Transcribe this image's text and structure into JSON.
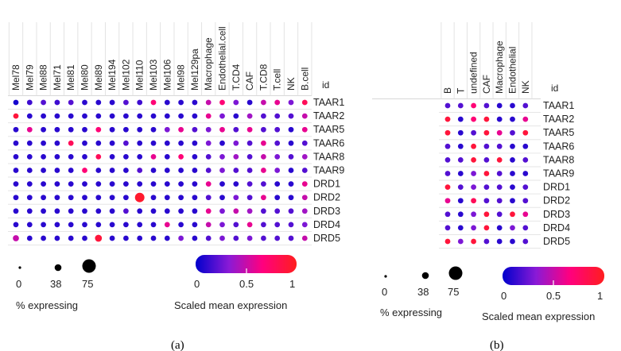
{
  "panels": [
    {
      "caption": "(a)",
      "chart_data": {
        "type": "dot-plot",
        "id_label": "id",
        "columns": [
          "Mel78",
          "Mel79",
          "Mel88",
          "Mel71",
          "Mel81",
          "Mel80",
          "Mel89",
          "Mel194",
          "Mel102",
          "Mel110",
          "Mel103",
          "Mel106",
          "Mel98",
          "Mel129pa",
          "Macrophage",
          "Endothelial.cell",
          "T.CD4",
          "CAF",
          "T.CD8",
          "T.cell",
          "NK",
          "B.cell"
        ],
        "rows": [
          "TAAR1",
          "TAAR2",
          "TAAR5",
          "TAAR6",
          "TAAR8",
          "TAAR9",
          "DRD1",
          "DRD2",
          "DRD3",
          "DRD4",
          "DRD5"
        ],
        "size_legend": {
          "title": "% expressing",
          "values": [
            0,
            38,
            75
          ],
          "labels": [
            "0",
            "38",
            "75"
          ]
        },
        "color_legend": {
          "title": "Scaled mean expression",
          "range": [
            0,
            1
          ],
          "ticks": [
            "0",
            "0.5",
            "1"
          ],
          "colors": [
            "#0000cc",
            "#8a1ad6",
            "#ff007f",
            "#ff1e1e"
          ]
        },
        "values": [
          [
            0.05,
            0.15,
            0.2,
            0.15,
            0.2,
            0.1,
            0.1,
            0.1,
            0.2,
            0.15,
            0.7,
            0.1,
            0.1,
            0.1,
            0.5,
            0.7,
            0.3,
            0.1,
            0.5,
            0.6,
            0.3,
            0.8
          ],
          [
            0.9,
            0.1,
            0.1,
            0.1,
            0.1,
            0.1,
            0.1,
            0.1,
            0.1,
            0.1,
            0.1,
            0.1,
            0.1,
            0.1,
            0.6,
            0.3,
            0.1,
            0.4,
            0.2,
            0.2,
            0.2,
            0.5
          ],
          [
            0.1,
            0.6,
            0.1,
            0.1,
            0.1,
            0.1,
            0.7,
            0.1,
            0.1,
            0.1,
            0.1,
            0.3,
            0.6,
            0.2,
            0.3,
            0.6,
            0.2,
            0.6,
            0.2,
            0.2,
            0.1,
            0.6
          ],
          [
            0.1,
            0.1,
            0.1,
            0.1,
            0.8,
            0.1,
            0.1,
            0.1,
            0.2,
            0.1,
            0.1,
            0.1,
            0.1,
            0.1,
            0.3,
            0.1,
            0.3,
            0.2,
            0.6,
            0.2,
            0.1,
            0.2
          ],
          [
            0.1,
            0.1,
            0.1,
            0.1,
            0.1,
            0.1,
            0.8,
            0.1,
            0.1,
            0.1,
            0.6,
            0.1,
            0.7,
            0.1,
            0.2,
            0.3,
            0.4,
            0.2,
            0.5,
            0.3,
            0.2,
            0.4
          ],
          [
            0.1,
            0.1,
            0.1,
            0.1,
            0.1,
            0.7,
            0.1,
            0.1,
            0.1,
            0.2,
            0.1,
            0.1,
            0.1,
            0.1,
            0.2,
            0.3,
            0.2,
            0.2,
            0.6,
            0.3,
            0.1,
            0.2
          ],
          [
            0.1,
            0.1,
            0.1,
            0.1,
            0.1,
            0.1,
            0.1,
            0.1,
            0.1,
            0.1,
            0.1,
            0.1,
            0.1,
            0.1,
            0.6,
            0.1,
            0.1,
            0.2,
            0.2,
            0.1,
            0.1,
            0.6
          ],
          [
            0.1,
            0.1,
            0.1,
            0.1,
            0.1,
            0.1,
            0.1,
            0.1,
            0.1,
            0.95,
            0.1,
            0.1,
            0.1,
            0.1,
            0.2,
            0.1,
            0.3,
            0.2,
            0.6,
            0.1,
            0.1,
            0.5
          ],
          [
            0.1,
            0.1,
            0.1,
            0.1,
            0.1,
            0.1,
            0.1,
            0.1,
            0.2,
            0.1,
            0.1,
            0.1,
            0.1,
            0.1,
            0.6,
            0.3,
            0.5,
            0.4,
            0.2,
            0.2,
            0.2,
            0.4
          ],
          [
            0.1,
            0.1,
            0.1,
            0.1,
            0.1,
            0.1,
            0.1,
            0.1,
            0.1,
            0.1,
            0.1,
            0.6,
            0.1,
            0.1,
            0.5,
            0.3,
            0.2,
            0.6,
            0.2,
            0.2,
            0.2,
            0.3
          ],
          [
            0.5,
            0.1,
            0.1,
            0.1,
            0.1,
            0.1,
            0.9,
            0.1,
            0.1,
            0.1,
            0.1,
            0.1,
            0.3,
            0.1,
            0.2,
            0.3,
            0.2,
            0.3,
            0.2,
            0.2,
            0.2,
            0.5
          ]
        ],
        "pct": [
          [
            5,
            5,
            5,
            5,
            5,
            5,
            5,
            5,
            5,
            5,
            5,
            5,
            5,
            5,
            5,
            5,
            5,
            5,
            5,
            5,
            5,
            5
          ],
          [
            5,
            5,
            5,
            5,
            5,
            5,
            5,
            5,
            5,
            5,
            5,
            5,
            5,
            5,
            5,
            5,
            5,
            5,
            5,
            5,
            5,
            5
          ],
          [
            5,
            5,
            5,
            5,
            5,
            5,
            5,
            5,
            5,
            5,
            5,
            5,
            5,
            5,
            5,
            5,
            5,
            5,
            5,
            5,
            5,
            5
          ],
          [
            5,
            5,
            5,
            5,
            5,
            5,
            5,
            5,
            5,
            5,
            5,
            5,
            5,
            5,
            5,
            5,
            5,
            5,
            5,
            5,
            5,
            5
          ],
          [
            5,
            5,
            5,
            5,
            5,
            5,
            5,
            5,
            5,
            5,
            5,
            5,
            5,
            5,
            5,
            5,
            5,
            5,
            5,
            5,
            5,
            5
          ],
          [
            5,
            5,
            5,
            5,
            5,
            5,
            5,
            5,
            5,
            5,
            5,
            5,
            5,
            5,
            5,
            5,
            5,
            5,
            5,
            5,
            5,
            5
          ],
          [
            5,
            5,
            5,
            5,
            5,
            5,
            5,
            5,
            5,
            5,
            5,
            5,
            5,
            5,
            5,
            5,
            5,
            5,
            5,
            5,
            5,
            5
          ],
          [
            5,
            5,
            5,
            5,
            5,
            5,
            5,
            5,
            5,
            30,
            5,
            5,
            5,
            5,
            5,
            5,
            5,
            5,
            5,
            5,
            5,
            5
          ],
          [
            5,
            5,
            5,
            5,
            5,
            5,
            5,
            5,
            5,
            5,
            5,
            5,
            5,
            5,
            5,
            5,
            5,
            5,
            5,
            5,
            5,
            5
          ],
          [
            5,
            5,
            5,
            5,
            5,
            5,
            5,
            5,
            5,
            5,
            5,
            5,
            5,
            5,
            5,
            5,
            5,
            5,
            5,
            5,
            5,
            5
          ],
          [
            8,
            5,
            5,
            5,
            5,
            5,
            12,
            5,
            5,
            5,
            5,
            5,
            5,
            5,
            5,
            5,
            5,
            5,
            5,
            5,
            5,
            5
          ]
        ]
      }
    },
    {
      "caption": "(b)",
      "chart_data": {
        "type": "dot-plot",
        "id_label": "id",
        "columns": [
          "B",
          "T",
          "undefined",
          "CAF",
          "Macrophage",
          "Endothelial",
          "NK"
        ],
        "rows": [
          "TAAR1",
          "TAAR2",
          "TAAR5",
          "TAAR6",
          "TAAR8",
          "TAAR9",
          "DRD1",
          "DRD2",
          "DRD3",
          "DRD4",
          "DRD5"
        ],
        "size_legend": {
          "title": "% expressing",
          "values": [
            0,
            38,
            75
          ],
          "labels": [
            "0",
            "38",
            "75"
          ]
        },
        "color_legend": {
          "title": "Scaled mean expression",
          "range": [
            0,
            1
          ],
          "ticks": [
            "0",
            "0.5",
            "1"
          ],
          "colors": [
            "#0000cc",
            "#8a1ad6",
            "#ff007f",
            "#ff1e1e"
          ]
        },
        "values": [
          [
            0.2,
            0.2,
            0.7,
            0.2,
            0.1,
            0.1,
            0.2
          ],
          [
            0.9,
            0.1,
            0.7,
            0.9,
            0.1,
            0.1,
            0.6
          ],
          [
            0.9,
            0.1,
            0.2,
            0.9,
            0.6,
            0.2,
            0.9
          ],
          [
            0.2,
            0.1,
            0.9,
            0.2,
            0.2,
            0.1,
            0.1
          ],
          [
            0.2,
            0.2,
            0.9,
            0.2,
            0.9,
            0.1,
            0.2
          ],
          [
            0.2,
            0.1,
            0.3,
            0.9,
            0.2,
            0.1,
            0.1
          ],
          [
            0.9,
            0.2,
            0.3,
            0.2,
            0.2,
            0.1,
            0.2
          ],
          [
            0.6,
            0.1,
            0.8,
            0.2,
            0.2,
            0.1,
            0.2
          ],
          [
            0.2,
            0.1,
            0.3,
            0.9,
            0.2,
            0.9,
            0.6
          ],
          [
            0.2,
            0.1,
            0.3,
            0.9,
            0.1,
            0.3,
            0.2
          ],
          [
            0.9,
            0.3,
            0.9,
            0.2,
            0.1,
            0.1,
            0.2
          ]
        ],
        "pct": [
          [
            5,
            5,
            5,
            5,
            5,
            5,
            5
          ],
          [
            5,
            5,
            5,
            5,
            5,
            5,
            5
          ],
          [
            5,
            5,
            5,
            5,
            5,
            5,
            5
          ],
          [
            5,
            5,
            5,
            5,
            5,
            5,
            5
          ],
          [
            5,
            5,
            5,
            5,
            5,
            5,
            5
          ],
          [
            5,
            5,
            5,
            5,
            5,
            5,
            5
          ],
          [
            5,
            5,
            5,
            5,
            5,
            5,
            5
          ],
          [
            5,
            5,
            5,
            5,
            5,
            5,
            5
          ],
          [
            5,
            5,
            5,
            5,
            5,
            5,
            5
          ],
          [
            5,
            5,
            5,
            5,
            5,
            5,
            5
          ],
          [
            5,
            5,
            5,
            5,
            5,
            5,
            5
          ]
        ]
      }
    }
  ]
}
